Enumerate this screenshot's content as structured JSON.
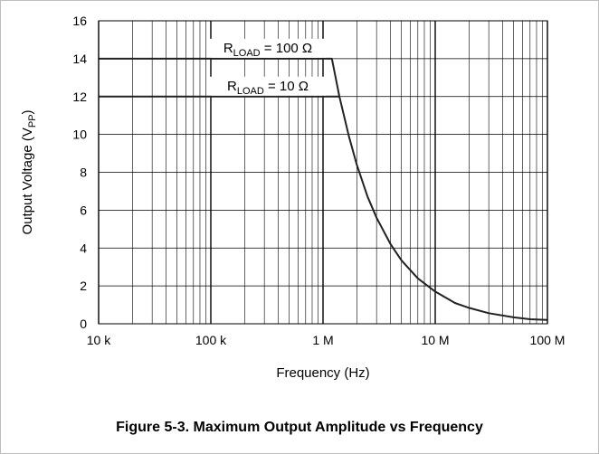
{
  "caption": "Figure 5-3. Maximum Output Amplitude vs Frequency",
  "chart_data": {
    "type": "line",
    "title": "",
    "xlabel": "Frequency (Hz)",
    "ylabel": {
      "main": "Output Voltage (V",
      "sub": "PP",
      "close": ")"
    },
    "x_scale": "log",
    "xlim": [
      10000,
      100000000
    ],
    "ylim": [
      0,
      16
    ],
    "grid": true,
    "x_ticks": [
      {
        "value": 10000,
        "label": "10 k"
      },
      {
        "value": 100000,
        "label": "100 k"
      },
      {
        "value": 1000000,
        "label": "1 M"
      },
      {
        "value": 10000000,
        "label": "10 M"
      },
      {
        "value": 100000000,
        "label": "100 M"
      }
    ],
    "y_ticks": [
      {
        "value": 0,
        "label": "0"
      },
      {
        "value": 2,
        "label": "2"
      },
      {
        "value": 4,
        "label": "4"
      },
      {
        "value": 6,
        "label": "6"
      },
      {
        "value": 8,
        "label": "8"
      },
      {
        "value": 10,
        "label": "10"
      },
      {
        "value": 12,
        "label": "12"
      },
      {
        "value": 14,
        "label": "14"
      },
      {
        "value": 16,
        "label": "16"
      }
    ],
    "series": [
      {
        "name": {
          "main": "R",
          "sub": "LOAD",
          "rest": " = 100 Ω"
        },
        "color": "#222222",
        "x": [
          10000,
          1200000,
          1400000,
          1700000,
          2000000,
          2500000,
          3000000,
          4000000,
          5000000,
          7000000,
          10000000,
          15000000,
          20000000,
          30000000,
          50000000,
          70000000,
          100000000
        ],
        "y": [
          14,
          14,
          12.0,
          9.9,
          8.4,
          6.7,
          5.6,
          4.2,
          3.35,
          2.4,
          1.7,
          1.1,
          0.84,
          0.56,
          0.34,
          0.24,
          0.2
        ]
      },
      {
        "name": {
          "main": "R",
          "sub": "LOAD",
          "rest": " = 10 Ω"
        },
        "color": "#222222",
        "x": [
          10000,
          1400000
        ],
        "y": [
          12,
          12
        ]
      }
    ]
  }
}
